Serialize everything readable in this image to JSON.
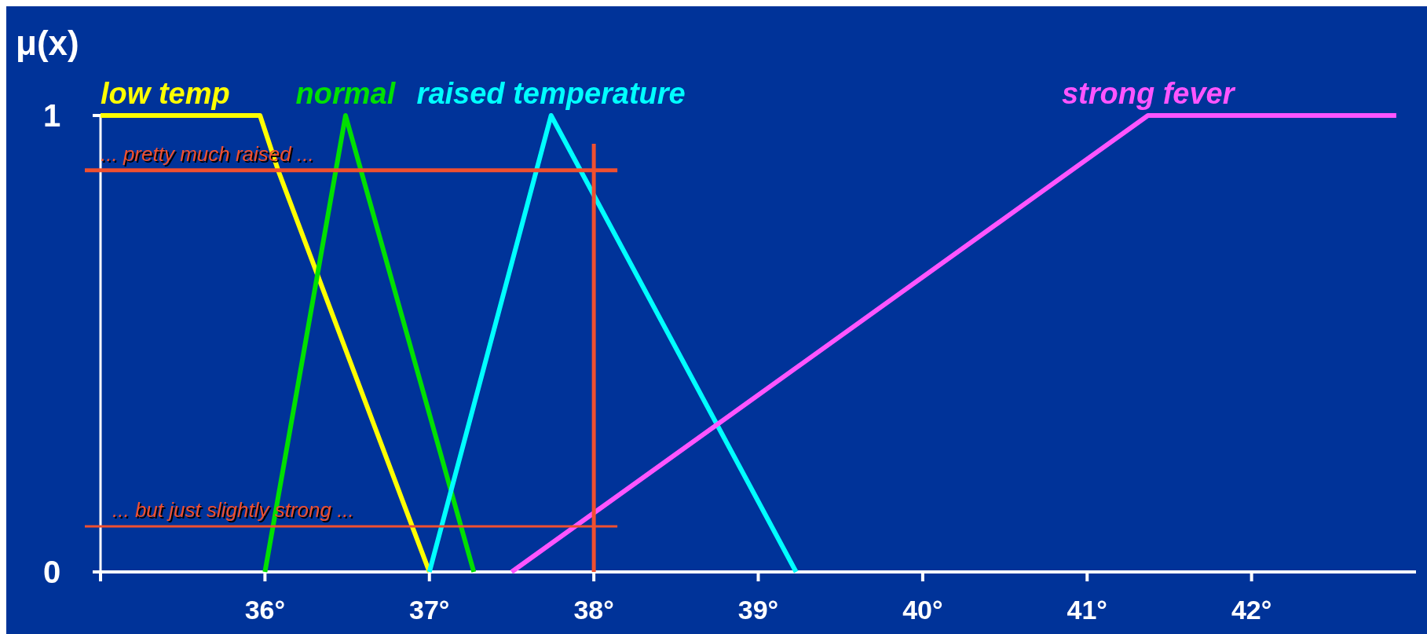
{
  "chart_data": {
    "type": "line",
    "ylabel": "μ(x)",
    "marker": "none",
    "line_style": "solid",
    "grid": false,
    "xlim": [
      35,
      43
    ],
    "ylim": [
      0,
      1
    ],
    "yticks": [
      0,
      1
    ],
    "xticks": [
      {
        "value": 35,
        "label": null
      },
      {
        "value": 36,
        "label": "36°"
      },
      {
        "value": 37,
        "label": "37°"
      },
      {
        "value": 38,
        "label": "38°"
      },
      {
        "value": 39,
        "label": "39°"
      },
      {
        "value": 40,
        "label": "40°"
      },
      {
        "value": 41,
        "label": "41°"
      },
      {
        "value": 42,
        "label": "42°"
      }
    ],
    "series": [
      {
        "name": "low temp",
        "color": "#ffff00",
        "x": [
          35,
          35.97,
          36.08,
          37
        ],
        "values": [
          1,
          1,
          0.88,
          0
        ]
      },
      {
        "name": "normal",
        "color": "#00e000",
        "x": [
          36,
          36.49,
          37.27
        ],
        "values": [
          0,
          1,
          0
        ]
      },
      {
        "name": "raised temperature",
        "color": "#00ffff",
        "x": [
          37,
          37.74,
          39.23
        ],
        "values": [
          0,
          1,
          0
        ]
      },
      {
        "name": "strong fever",
        "color": "#ff55ff",
        "x": [
          37.5,
          41.37,
          42.88
        ],
        "values": [
          0,
          1,
          1
        ]
      }
    ],
    "ref_lines": [
      {
        "axis": "y",
        "value": 0.88,
        "label": "... pretty much raised ...",
        "color": "#f05030"
      },
      {
        "axis": "y",
        "value": 0.1,
        "label": "... but just slightly strong ...",
        "color": "#f05030"
      },
      {
        "axis": "x",
        "value": 38,
        "color": "#f05030"
      }
    ]
  }
}
